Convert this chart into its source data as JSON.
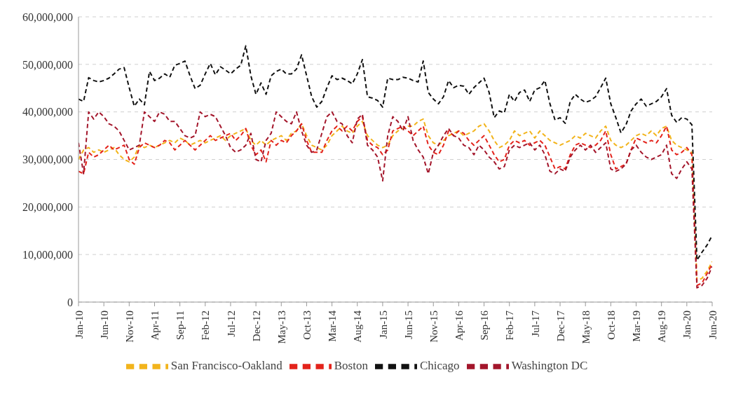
{
  "chart_data": {
    "type": "line",
    "categories": [
      "Jan-10",
      null,
      null,
      null,
      null,
      "Jun-10",
      null,
      null,
      null,
      null,
      "Nov-10",
      null,
      null,
      null,
      null,
      "Apr-11",
      null,
      null,
      null,
      null,
      "Sep-11",
      null,
      null,
      null,
      null,
      "Feb-12",
      null,
      null,
      null,
      null,
      "Jul-12",
      null,
      null,
      null,
      null,
      "Dec-12",
      null,
      null,
      null,
      null,
      "May-13",
      null,
      null,
      null,
      null,
      "Oct-13",
      null,
      null,
      null,
      null,
      "Mar-14",
      null,
      null,
      null,
      null,
      "Aug-14",
      null,
      null,
      null,
      null,
      "Jan-15",
      null,
      null,
      null,
      null,
      "Jun-15",
      null,
      null,
      null,
      null,
      "Nov-15",
      null,
      null,
      null,
      null,
      "Apr-16",
      null,
      null,
      null,
      null,
      "Sep-16",
      null,
      null,
      null,
      null,
      "Feb-17",
      null,
      null,
      null,
      null,
      "Jul-17",
      null,
      null,
      null,
      null,
      "Dec-17",
      null,
      null,
      null,
      null,
      "May-18",
      null,
      null,
      null,
      null,
      "Oct-18",
      null,
      null,
      null,
      null,
      "Mar-19",
      null,
      null,
      null,
      null,
      "Aug-19",
      null,
      null,
      null,
      null,
      "Jan-20",
      null,
      null,
      null,
      null,
      "Jun-20"
    ],
    "series": [
      {
        "name": "San Francisco-Oakland",
        "color": "#f2b41c",
        "values": [
          30000000,
          32000000,
          32500000,
          31500000,
          32000000,
          31500000,
          32000000,
          32500000,
          31000000,
          30000000,
          29500000,
          30500000,
          33000000,
          32500000,
          33000000,
          32500000,
          33000000,
          33500000,
          34000000,
          33500000,
          34500000,
          34000000,
          33000000,
          33500000,
          34000000,
          33500000,
          34000000,
          34500000,
          35000000,
          34000000,
          35000000,
          35500000,
          36000000,
          36500000,
          34000000,
          33000000,
          34000000,
          33000000,
          34000000,
          34500000,
          35000000,
          34000000,
          35500000,
          36000000,
          37500000,
          35000000,
          33000000,
          32500000,
          32000000,
          33000000,
          35000000,
          36000000,
          37000000,
          36000000,
          35500000,
          37000000,
          38000000,
          35000000,
          34000000,
          33000000,
          32500000,
          33000000,
          35000000,
          36000000,
          36500000,
          37000000,
          37000000,
          38000000,
          38500000,
          35000000,
          33500000,
          33000000,
          34000000,
          35000000,
          35500000,
          36000000,
          35000000,
          35500000,
          36000000,
          37000000,
          37500000,
          36000000,
          34000000,
          32500000,
          33000000,
          34000000,
          36000000,
          35000000,
          35500000,
          36000000,
          34500000,
          36000000,
          35000000,
          34000000,
          33500000,
          33000000,
          33500000,
          34000000,
          35000000,
          34500000,
          35500000,
          35000000,
          34500000,
          36000000,
          37000000,
          34000000,
          33000000,
          32500000,
          33000000,
          34000000,
          35000000,
          35500000,
          35000000,
          36000000,
          35000000,
          36500000,
          37000000,
          34000000,
          33000000,
          32500000,
          32000000,
          31500000,
          4500000,
          5000000,
          6500000,
          8500000
        ]
      },
      {
        "name": "Boston",
        "color": "#e3231b",
        "values": [
          27500000,
          27000000,
          31500000,
          30500000,
          31000000,
          32000000,
          33000000,
          32000000,
          32500000,
          33000000,
          30000000,
          29000000,
          32500000,
          33500000,
          33000000,
          32500000,
          33000000,
          34000000,
          33500000,
          32000000,
          33000000,
          34000000,
          33000000,
          32000000,
          33000000,
          34000000,
          35000000,
          34000000,
          34500000,
          35000000,
          35500000,
          34000000,
          35000000,
          36500000,
          33000000,
          31000000,
          32000000,
          29500000,
          34000000,
          33000000,
          34000000,
          33500000,
          35000000,
          36000000,
          37500000,
          34000000,
          31500000,
          31500000,
          31500000,
          34000000,
          36000000,
          37000000,
          36000000,
          37000000,
          36000000,
          38000000,
          39000000,
          34000000,
          33000000,
          32500000,
          31000000,
          32000000,
          36000000,
          36500000,
          37000000,
          36000000,
          35000000,
          36000000,
          37000000,
          33000000,
          31500000,
          31000000,
          33000000,
          36000000,
          35000000,
          36000000,
          35500000,
          34000000,
          33000000,
          34000000,
          35000000,
          33000000,
          31000000,
          29500000,
          30000000,
          33000000,
          34000000,
          33500000,
          34000000,
          33000000,
          33500000,
          34000000,
          33000000,
          30500000,
          28000000,
          28500000,
          28000000,
          31000000,
          33000000,
          33500000,
          33000000,
          32500000,
          33000000,
          34000000,
          36000000,
          31000000,
          28000000,
          28500000,
          29000000,
          32000000,
          34500000,
          34000000,
          33500000,
          34000000,
          33500000,
          35000000,
          37000000,
          32000000,
          31000000,
          31500000,
          32500000,
          31000000,
          3500000,
          4000000,
          6000000,
          8000000
        ]
      },
      {
        "name": "Chicago",
        "color": "#111111",
        "values": [
          42700000,
          42200000,
          47200000,
          46600000,
          46300000,
          46600000,
          47100000,
          48000000,
          49000000,
          49300000,
          45100000,
          41200000,
          42700000,
          41500000,
          48500000,
          46600000,
          47100000,
          48000000,
          47300000,
          49800000,
          50200000,
          50700000,
          47600000,
          44900000,
          45600000,
          48000000,
          50200000,
          47800000,
          49500000,
          48800000,
          48000000,
          49000000,
          49800000,
          53900000,
          47600000,
          43700000,
          46100000,
          43700000,
          47600000,
          48500000,
          49000000,
          48000000,
          48000000,
          49000000,
          52000000,
          47600000,
          43200000,
          41000000,
          42200000,
          45100000,
          47600000,
          46800000,
          47100000,
          46600000,
          45900000,
          48000000,
          51000000,
          43200000,
          42900000,
          42400000,
          41000000,
          47100000,
          46800000,
          46800000,
          47300000,
          47100000,
          46600000,
          46300000,
          50700000,
          44100000,
          42700000,
          41700000,
          43200000,
          46600000,
          45100000,
          45600000,
          45400000,
          43700000,
          45100000,
          46100000,
          47100000,
          44100000,
          38800000,
          40200000,
          39800000,
          43700000,
          42200000,
          44100000,
          44600000,
          42200000,
          44600000,
          45100000,
          46600000,
          41700000,
          38300000,
          38800000,
          37600000,
          42200000,
          43700000,
          42700000,
          42000000,
          42400000,
          43200000,
          45100000,
          47100000,
          41700000,
          38800000,
          35600000,
          37300000,
          40200000,
          41700000,
          42700000,
          41200000,
          41700000,
          42200000,
          43200000,
          44900000,
          39300000,
          37800000,
          38800000,
          38500000,
          37300000,
          8800000,
          10500000,
          12000000,
          14000000
        ]
      },
      {
        "name": "Washington DC",
        "color": "#a3162b",
        "values": [
          33500000,
          27000000,
          40000000,
          38500000,
          40000000,
          39000000,
          37500000,
          37000000,
          36000000,
          34000000,
          32000000,
          32500000,
          33000000,
          40000000,
          39000000,
          38000000,
          40000000,
          39500000,
          38000000,
          38000000,
          36500000,
          35000000,
          34500000,
          35000000,
          40000000,
          39000000,
          39500000,
          39000000,
          37000000,
          35000000,
          32500000,
          31500000,
          32000000,
          33000000,
          35500000,
          30000000,
          29500000,
          34000000,
          35500000,
          40000000,
          39000000,
          38000000,
          37500000,
          40000000,
          36000000,
          33000000,
          31500000,
          32000000,
          35500000,
          39000000,
          40000000,
          38000000,
          37500000,
          35000000,
          33500000,
          38500000,
          39500000,
          33000000,
          32000000,
          30500000,
          25500000,
          35000000,
          39000000,
          38000000,
          36000000,
          39000000,
          34000000,
          32000000,
          30500000,
          27000000,
          31500000,
          33000000,
          35000000,
          36500000,
          35000000,
          34500000,
          33000000,
          32500000,
          31000000,
          33000000,
          32000000,
          30500000,
          29500000,
          28000000,
          28500000,
          32000000,
          33000000,
          32500000,
          33000000,
          33500000,
          32000000,
          33000000,
          31000000,
          27500000,
          27000000,
          28000000,
          27500000,
          30500000,
          32000000,
          33000000,
          32000000,
          33000000,
          31500000,
          32500000,
          33500000,
          28000000,
          27500000,
          28000000,
          29000000,
          32000000,
          33000000,
          31500000,
          30500000,
          30000000,
          30500000,
          31000000,
          33000000,
          27000000,
          26000000,
          28000000,
          29500000,
          28000000,
          3000000,
          3500000,
          5000000,
          7500000
        ]
      }
    ],
    "ylim": [
      0,
      60000000
    ],
    "yticks": [
      0,
      {
        "value": 10000000,
        "label": "10,000,000"
      },
      {
        "value": 20000000,
        "label": "20,000,000"
      },
      {
        "value": 30000000,
        "label": "30,000,000"
      },
      {
        "value": 40000000,
        "label": "40,000,000"
      },
      {
        "value": 50000000,
        "label": "50,000,000"
      },
      {
        "value": 60000000,
        "label": "60,000,000"
      }
    ],
    "grid": "y",
    "legend": "bottom",
    "line_style": "dashed",
    "marker": "none"
  }
}
